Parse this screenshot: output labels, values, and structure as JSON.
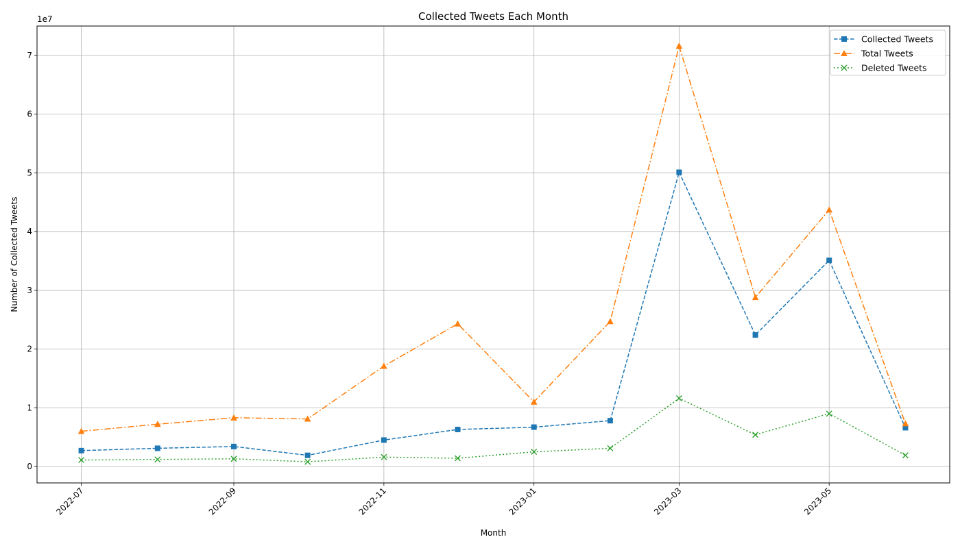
{
  "chart_data": {
    "type": "line",
    "title": "Collected Tweets Each Month",
    "xlabel": "Month",
    "ylabel": "Number of Collected Tweets",
    "y_offset_label": "1e7",
    "y_scale": 10000000,
    "x_tick_labels": [
      "2022-07",
      "2022-09",
      "2022-11",
      "2023-01",
      "2023-03",
      "2023-05"
    ],
    "y_tick_values": [
      0,
      1,
      2,
      3,
      4,
      5,
      6,
      7
    ],
    "y_tick_labels": [
      "0",
      "1",
      "2",
      "3",
      "4",
      "5",
      "6",
      "7"
    ],
    "ylim": [
      -2800000,
      75000000
    ],
    "xlim": [
      "2022-06-13",
      "2023-06-19"
    ],
    "grid": true,
    "legend_position": "top-right",
    "x": [
      "2022-07-01",
      "2022-08-01",
      "2022-09-01",
      "2022-10-01",
      "2022-11-01",
      "2022-12-01",
      "2023-01-01",
      "2023-02-01",
      "2023-03-01",
      "2023-04-01",
      "2023-05-01",
      "2023-06-01"
    ],
    "series": [
      {
        "name": "Collected Tweets",
        "color": "#1f77b4",
        "linestyle": "dashed",
        "marker": "square",
        "values": [
          2700000,
          3100000,
          3400000,
          1900000,
          4500000,
          6300000,
          6700000,
          7800000,
          50100000,
          22400000,
          35100000,
          6600000
        ]
      },
      {
        "name": "Total Tweets",
        "color": "#ff7f0e",
        "linestyle": "dashdot",
        "marker": "triangle",
        "values": [
          6000000,
          7200000,
          8300000,
          8100000,
          17100000,
          24300000,
          11000000,
          24700000,
          71600000,
          28800000,
          43700000,
          7300000
        ]
      },
      {
        "name": "Deleted Tweets",
        "color": "#2ca02c",
        "linestyle": "dotted",
        "marker": "x",
        "values": [
          1100000,
          1200000,
          1300000,
          800000,
          1600000,
          1400000,
          2500000,
          3100000,
          11600000,
          5400000,
          9000000,
          1900000
        ]
      }
    ]
  }
}
